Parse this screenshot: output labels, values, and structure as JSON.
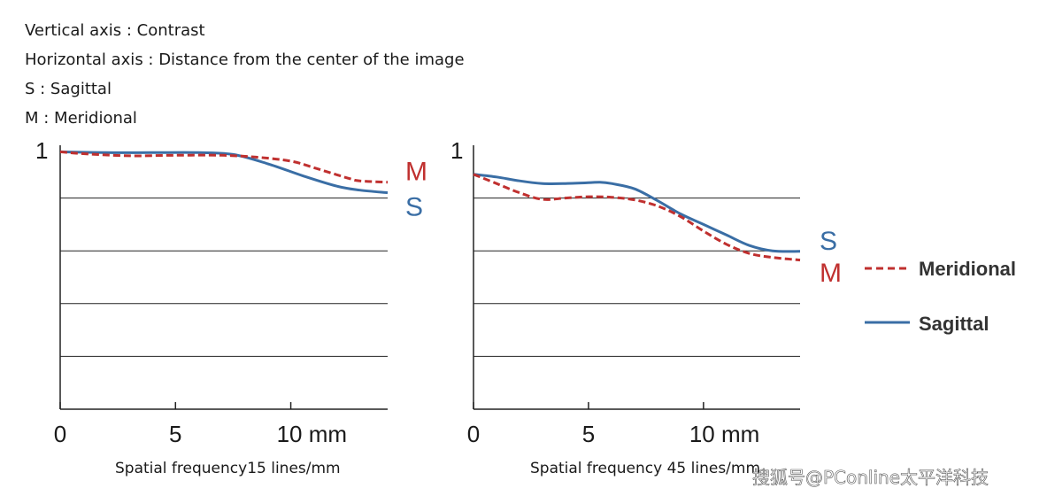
{
  "notes": {
    "vertical": "Vertical axis : Contrast",
    "horizontal": "Horizontal axis : Distance from the center of the image",
    "sagittal": "S : Sagittal",
    "meridional": "M : Meridional"
  },
  "colors": {
    "meridional": "#c0302f",
    "sagittal": "#3a6ea5",
    "grid": "#222222"
  },
  "legend": {
    "meridional": "Meridional",
    "sagittal": "Sagittal"
  },
  "watermark": "搜狐号@PConline太平洋科技",
  "chart_data": [
    {
      "type": "line",
      "ylabel_top": "1",
      "xtick_labels": [
        "0",
        "5",
        "10 mm"
      ],
      "xticks": [
        0,
        5,
        10
      ],
      "xlim": [
        0,
        14.2
      ],
      "ylim": [
        0,
        1
      ],
      "grid_y": [
        0.2,
        0.4,
        0.6,
        0.8
      ],
      "caption": "Spatial frequency15 lines/mm",
      "end_labels": {
        "meridional": "M",
        "sagittal": "S"
      },
      "series": [
        {
          "key": "sagittal",
          "x": [
            0,
            2,
            4,
            6,
            7.5,
            9,
            10.5,
            12,
            13,
            14.2
          ],
          "y": [
            0.975,
            0.972,
            0.972,
            0.972,
            0.965,
            0.93,
            0.885,
            0.845,
            0.83,
            0.82
          ]
        },
        {
          "key": "meridional",
          "x": [
            0,
            1,
            3,
            5,
            7,
            8.5,
            10,
            11,
            12.5,
            13,
            14.2
          ],
          "y": [
            0.975,
            0.968,
            0.96,
            0.962,
            0.962,
            0.955,
            0.94,
            0.915,
            0.875,
            0.865,
            0.86
          ]
        }
      ]
    },
    {
      "type": "line",
      "ylabel_top": "1",
      "xtick_labels": [
        "0",
        "5",
        "10 mm"
      ],
      "xticks": [
        0,
        5,
        10
      ],
      "xlim": [
        0,
        14.2
      ],
      "ylim": [
        0,
        1
      ],
      "grid_y": [
        0.2,
        0.4,
        0.6,
        0.8
      ],
      "caption": "Spatial frequency 45 lines/mm",
      "end_labels": {
        "meridional": "M",
        "sagittal": "S"
      },
      "series": [
        {
          "key": "sagittal",
          "x": [
            0,
            1,
            2,
            3,
            4,
            5,
            5.5,
            6,
            7,
            8,
            9,
            10,
            11,
            12,
            13,
            14.2
          ],
          "y": [
            0.89,
            0.88,
            0.865,
            0.855,
            0.855,
            0.858,
            0.86,
            0.855,
            0.835,
            0.79,
            0.74,
            0.7,
            0.66,
            0.62,
            0.6,
            0.598
          ]
        },
        {
          "key": "meridional",
          "x": [
            0,
            1,
            2,
            3,
            4,
            5,
            6,
            7,
            8,
            9,
            10,
            11,
            12,
            13,
            14.2
          ],
          "y": [
            0.89,
            0.855,
            0.82,
            0.795,
            0.8,
            0.805,
            0.803,
            0.793,
            0.77,
            0.73,
            0.675,
            0.625,
            0.59,
            0.575,
            0.565
          ]
        }
      ]
    }
  ]
}
